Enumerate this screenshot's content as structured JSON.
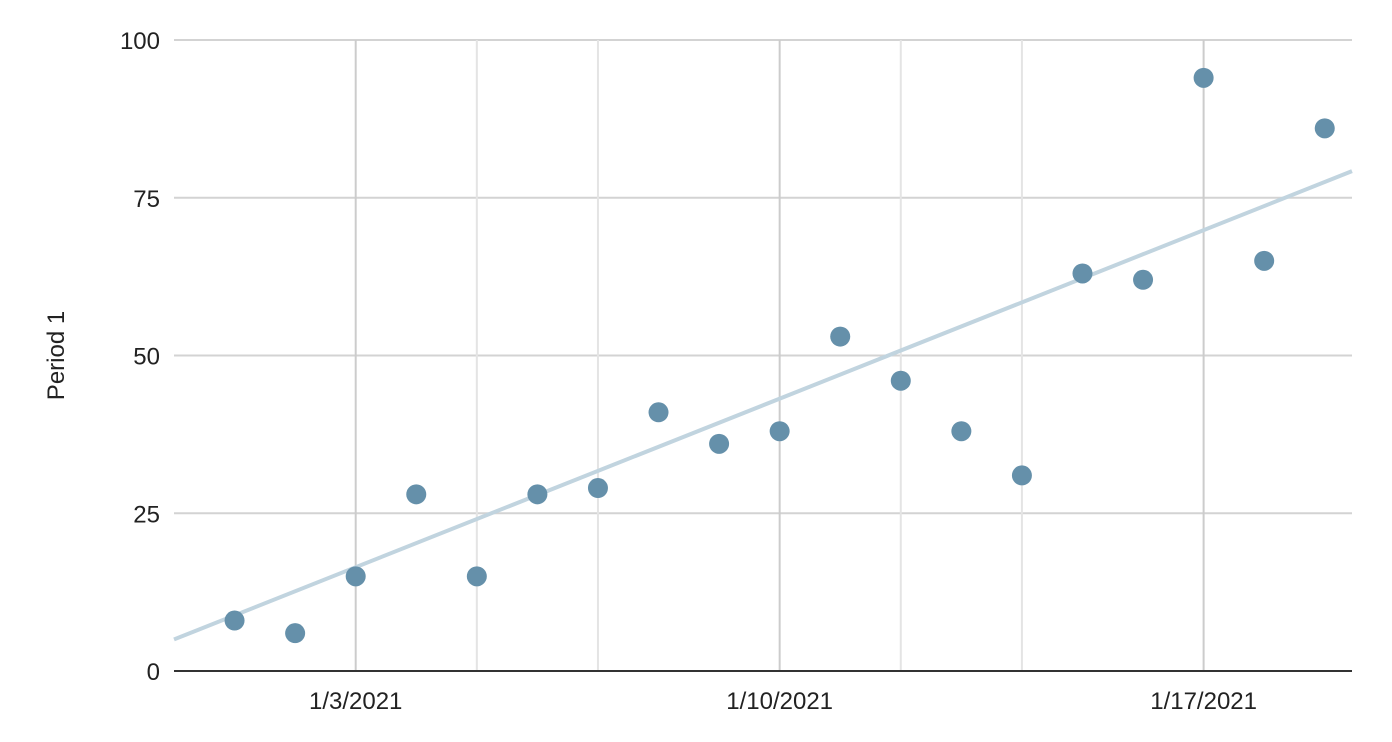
{
  "chart_data": {
    "type": "scatter",
    "title": "",
    "xlabel": "",
    "ylabel": "Period 1",
    "ylim": [
      0,
      100
    ],
    "y_ticks": [
      "0",
      "25",
      "50",
      "75",
      "100"
    ],
    "x_range": [
      "2020-12-31",
      "2021-01-19"
    ],
    "x_tick_labels": [
      {
        "date": "2021-01-03",
        "label": "1/3/2021"
      },
      {
        "date": "2021-01-10",
        "label": "1/10/2021"
      },
      {
        "date": "2021-01-17",
        "label": "1/17/2021"
      }
    ],
    "x_minor_gridlines": [
      "2021-01-05",
      "2021-01-07",
      "2021-01-12",
      "2021-01-14"
    ],
    "grid": true,
    "legend": "none",
    "series": [
      {
        "color": "#6590aa",
        "points": [
          {
            "x": "2021-01-01",
            "y": 8
          },
          {
            "x": "2021-01-02",
            "y": 6
          },
          {
            "x": "2021-01-03",
            "y": 15
          },
          {
            "x": "2021-01-04",
            "y": 28
          },
          {
            "x": "2021-01-05",
            "y": 15
          },
          {
            "x": "2021-01-06",
            "y": 28
          },
          {
            "x": "2021-01-07",
            "y": 29
          },
          {
            "x": "2021-01-08",
            "y": 41
          },
          {
            "x": "2021-01-09",
            "y": 36
          },
          {
            "x": "2021-01-10",
            "y": 38
          },
          {
            "x": "2021-01-11",
            "y": 53
          },
          {
            "x": "2021-01-12",
            "y": 46
          },
          {
            "x": "2021-01-13",
            "y": 38
          },
          {
            "x": "2021-01-14",
            "y": 31
          },
          {
            "x": "2021-01-15",
            "y": 63
          },
          {
            "x": "2021-01-16",
            "y": 62
          },
          {
            "x": "2021-01-17",
            "y": 94
          },
          {
            "x": "2021-01-18",
            "y": 65
          },
          {
            "x": "2021-01-19",
            "y": 86
          }
        ]
      }
    ],
    "trendline": {
      "type": "linear",
      "color": "#c1d4df",
      "start": {
        "x": "2020-12-31",
        "y": 5
      },
      "end": {
        "x": "2021-01-19",
        "y": 77.5
      }
    }
  }
}
